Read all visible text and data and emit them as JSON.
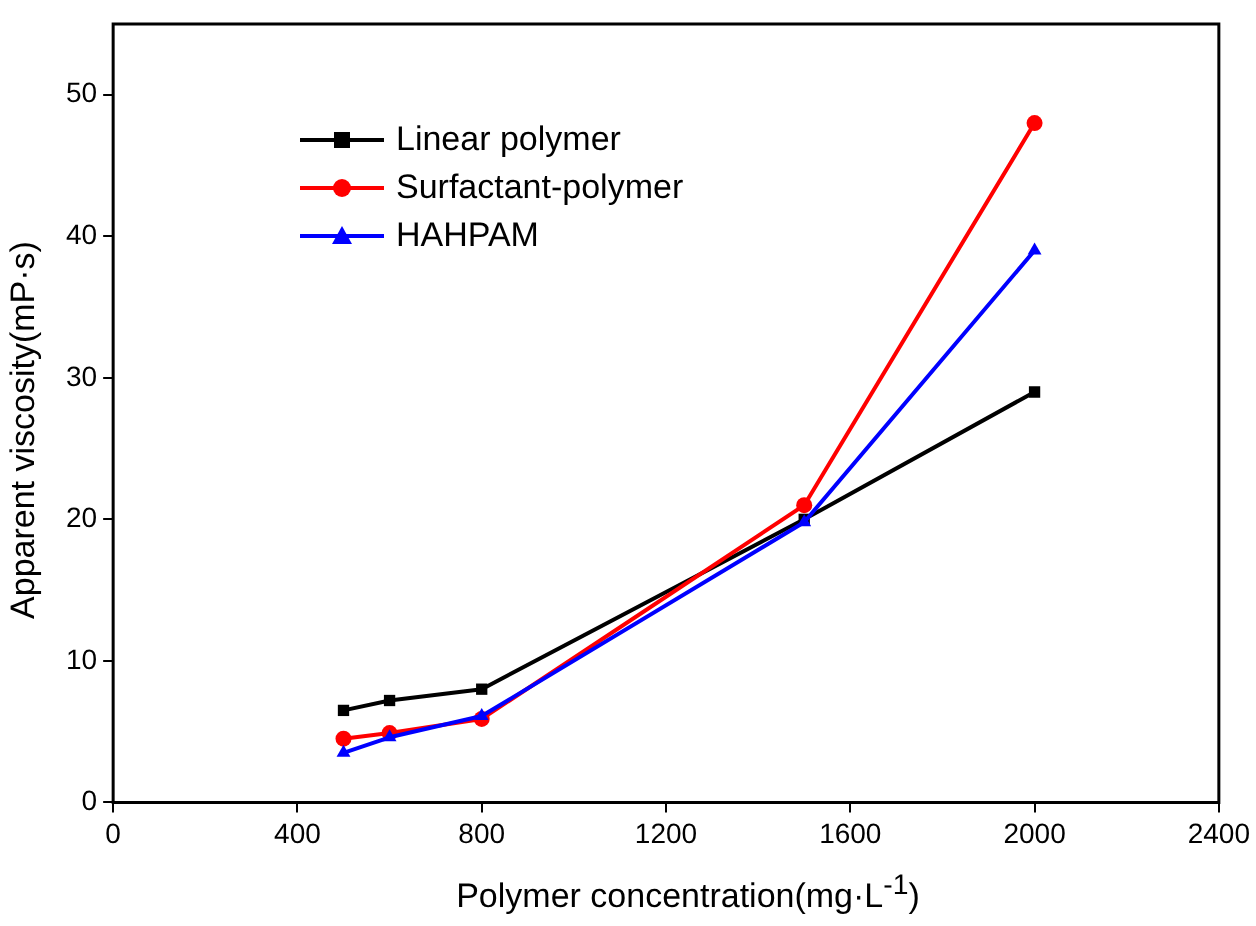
{
  "chart_data": {
    "type": "line",
    "xlabel": "Polymer concentration(mg·L$^{-1}$)",
    "ylabel": "Apparent viscosity(mP·s)",
    "x": [
      500,
      600,
      800,
      1500,
      2000
    ],
    "series": [
      {
        "name": "Linear polymer",
        "color": "#000000",
        "marker": "square",
        "values": [
          6.5,
          7.2,
          8,
          20,
          29
        ]
      },
      {
        "name": "Surfactant-polymer",
        "color": "#ff0000",
        "marker": "circle",
        "values": [
          4.5,
          4.9,
          5.9,
          21,
          48
        ]
      },
      {
        "name": "HAHPAM",
        "color": "#0000ff",
        "marker": "triangle",
        "values": [
          3.5,
          4.6,
          6.1,
          19.8,
          39
        ]
      }
    ],
    "xlim": [
      0,
      2400
    ],
    "xticks": [
      0,
      400,
      800,
      1200,
      1600,
      2000,
      2400
    ],
    "ylim": [
      0,
      55
    ],
    "yticks": [
      0,
      10,
      20,
      30,
      40,
      50
    ],
    "legend": "top left",
    "grid": false
  }
}
